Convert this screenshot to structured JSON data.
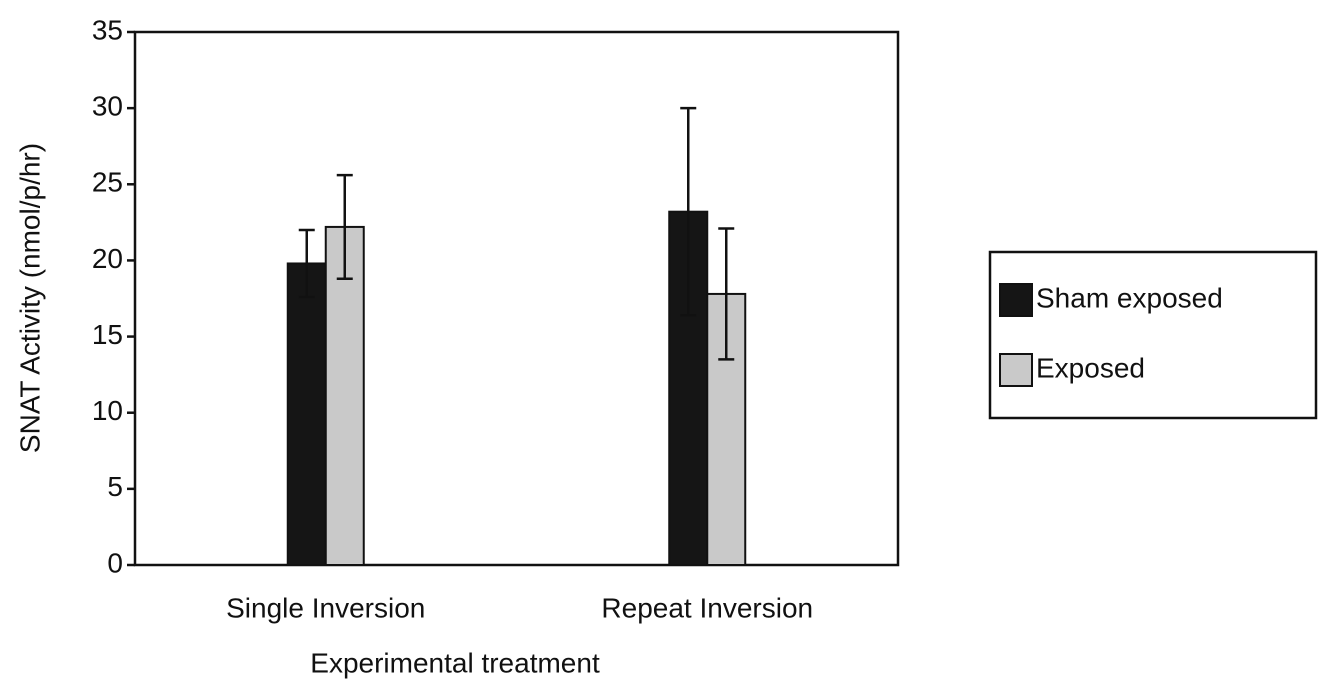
{
  "chart_data": {
    "type": "bar",
    "x_label": "Experimental treatment",
    "y_label": "SNAT Activity (nmol/p/hr)",
    "categories": [
      "Single Inversion",
      "Repeat Inversion"
    ],
    "series": [
      {
        "name": "Sham exposed",
        "color": "#151515",
        "values": [
          19.8,
          23.2
        ],
        "errors": [
          2.2,
          6.8
        ]
      },
      {
        "name": "Exposed",
        "color": "#c9c9c9",
        "values": [
          22.2,
          17.8
        ],
        "errors": [
          3.4,
          4.3
        ]
      }
    ],
    "ylim": [
      0,
      35
    ],
    "yticks": [
      0,
      5,
      10,
      15,
      20,
      25,
      30,
      35
    ],
    "legend": "right",
    "grid": false
  }
}
